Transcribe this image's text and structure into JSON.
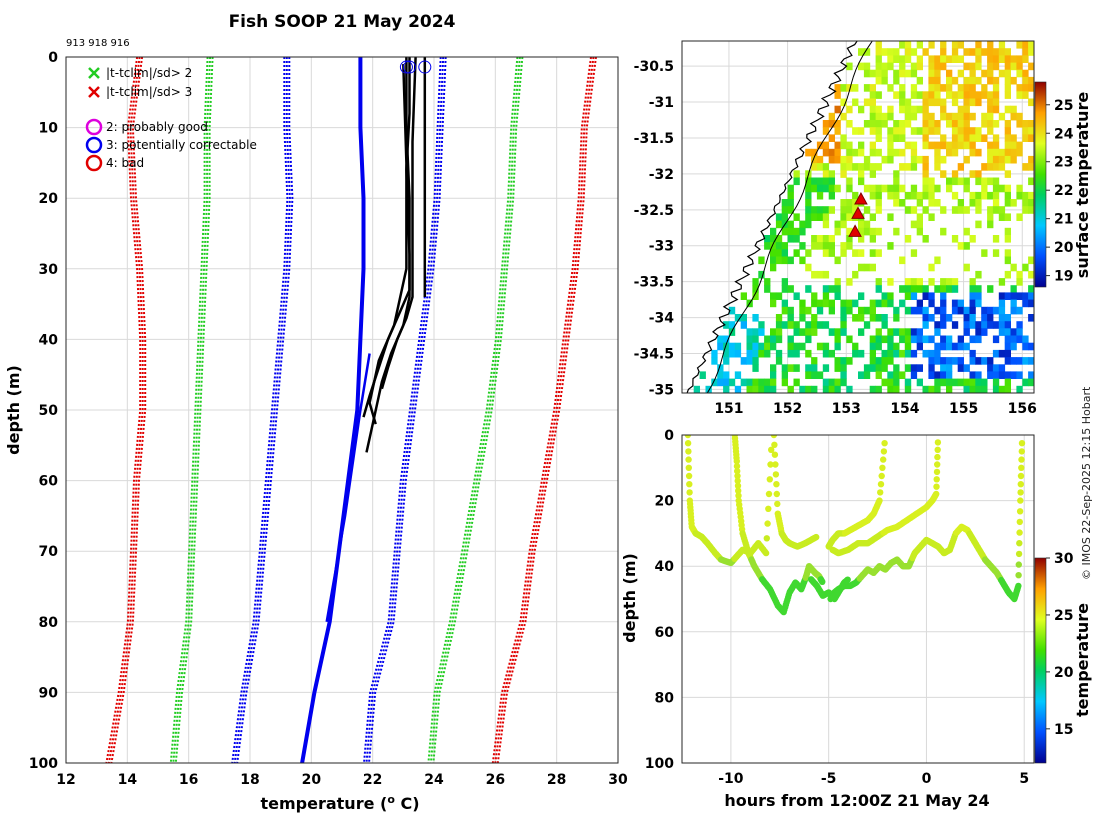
{
  "title": "Fish SOOP 21 May 2024",
  "ids": "913 918 916",
  "copyright": "© IMOS 22-Sep-2025 12:15 Hobart",
  "colors": {
    "red": "#e00000",
    "green": "#22cc22",
    "blue": "#0000ee",
    "black": "#000000",
    "magenta": "#dd00dd",
    "grid": "#d9d9d9"
  },
  "chart_data": [
    {
      "name": "profile",
      "type": "line",
      "xlabel": "temperature (",
      "xlabel_sup": "o",
      "xlabel_tail": " C)",
      "ylabel": "depth (m)",
      "xlim": [
        12,
        30
      ],
      "ylim": [
        0,
        100
      ],
      "xticks": [
        12,
        14,
        16,
        18,
        20,
        22,
        24,
        26,
        28,
        30
      ],
      "yticks": [
        0,
        10,
        20,
        30,
        40,
        50,
        60,
        70,
        80,
        90,
        100
      ],
      "legend": [
        {
          "marker": "x",
          "color": "#22cc22",
          "label": "|t-tclim|/sd> 2"
        },
        {
          "marker": "x",
          "color": "#e00000",
          "label": "|t-tclim|/sd> 3"
        },
        {
          "marker": "o",
          "color": "#dd00dd",
          "label": "2: probably good"
        },
        {
          "marker": "o",
          "color": "#0000ee",
          "label": "3: potentially correctable"
        },
        {
          "marker": "o",
          "color": "#e00000",
          "label": "4: bad"
        }
      ],
      "climatology": {
        "red_left": [
          [
            14.4,
            0
          ],
          [
            14.1,
            10
          ],
          [
            14.2,
            20
          ],
          [
            14.4,
            30
          ],
          [
            14.5,
            40
          ],
          [
            14.5,
            50
          ],
          [
            14.3,
            60
          ],
          [
            14.2,
            70
          ],
          [
            14.1,
            80
          ],
          [
            13.8,
            90
          ],
          [
            13.4,
            100
          ]
        ],
        "green_left": [
          [
            16.7,
            0
          ],
          [
            16.6,
            10
          ],
          [
            16.6,
            20
          ],
          [
            16.5,
            30
          ],
          [
            16.4,
            40
          ],
          [
            16.3,
            50
          ],
          [
            16.2,
            60
          ],
          [
            16.1,
            70
          ],
          [
            16.0,
            80
          ],
          [
            15.7,
            90
          ],
          [
            15.5,
            100
          ]
        ],
        "blue_left": [
          [
            19.2,
            0
          ],
          [
            19.2,
            10
          ],
          [
            19.3,
            20
          ],
          [
            19.2,
            30
          ],
          [
            19.0,
            40
          ],
          [
            18.8,
            50
          ],
          [
            18.6,
            60
          ],
          [
            18.4,
            70
          ],
          [
            18.2,
            80
          ],
          [
            17.8,
            90
          ],
          [
            17.5,
            100
          ]
        ],
        "blue_right": [
          [
            24.3,
            0
          ],
          [
            24.2,
            10
          ],
          [
            24.1,
            20
          ],
          [
            23.9,
            30
          ],
          [
            23.6,
            40
          ],
          [
            23.3,
            50
          ],
          [
            23.0,
            60
          ],
          [
            22.8,
            70
          ],
          [
            22.6,
            80
          ],
          [
            22.0,
            90
          ],
          [
            21.8,
            100
          ]
        ],
        "green_right": [
          [
            26.8,
            0
          ],
          [
            26.6,
            10
          ],
          [
            26.5,
            20
          ],
          [
            26.3,
            30
          ],
          [
            26.1,
            40
          ],
          [
            25.8,
            50
          ],
          [
            25.4,
            60
          ],
          [
            25.0,
            70
          ],
          [
            24.6,
            80
          ],
          [
            24.1,
            90
          ],
          [
            23.9,
            100
          ]
        ],
        "red_right": [
          [
            29.2,
            0
          ],
          [
            28.9,
            10
          ],
          [
            28.8,
            20
          ],
          [
            28.6,
            30
          ],
          [
            28.3,
            40
          ],
          [
            28.0,
            50
          ],
          [
            27.6,
            60
          ],
          [
            27.2,
            70
          ],
          [
            26.9,
            80
          ],
          [
            26.3,
            90
          ],
          [
            26.0,
            100
          ]
        ]
      },
      "mean_profile": [
        [
          21.6,
          0
        ],
        [
          21.6,
          10
        ],
        [
          21.7,
          20
        ],
        [
          21.7,
          30
        ],
        [
          21.6,
          40
        ],
        [
          21.5,
          50
        ],
        [
          21.2,
          60
        ],
        [
          20.9,
          70
        ],
        [
          20.6,
          80
        ],
        [
          20.1,
          90
        ],
        [
          19.7,
          100
        ]
      ],
      "mean_profile_short": [
        [
          21.9,
          42
        ],
        [
          21.6,
          50
        ],
        [
          21.1,
          65
        ],
        [
          20.5,
          80
        ]
      ],
      "profiles": [
        [
          [
            23.1,
            0
          ],
          [
            23.1,
            10
          ],
          [
            23.2,
            20
          ],
          [
            23.2,
            34
          ],
          [
            23.0,
            38
          ],
          [
            22.6,
            42
          ],
          [
            22.3,
            46
          ],
          [
            22.0,
            52
          ],
          [
            21.8,
            56
          ]
        ],
        [
          [
            23.2,
            0
          ],
          [
            23.2,
            8
          ],
          [
            23.1,
            16
          ],
          [
            23.2,
            28
          ],
          [
            23.2,
            33
          ],
          [
            22.9,
            36
          ],
          [
            22.5,
            40
          ],
          [
            22.2,
            44
          ],
          [
            21.9,
            48
          ],
          [
            21.7,
            51
          ]
        ],
        [
          [
            23.4,
            0
          ],
          [
            23.3,
            12
          ],
          [
            23.3,
            24
          ],
          [
            23.3,
            34
          ],
          [
            23.1,
            37
          ],
          [
            22.8,
            40
          ],
          [
            22.5,
            44
          ],
          [
            22.3,
            47
          ]
        ],
        [
          [
            23.7,
            0
          ],
          [
            23.7,
            10
          ],
          [
            23.7,
            20
          ],
          [
            23.7,
            34
          ]
        ],
        [
          [
            23.0,
            1
          ],
          [
            23.1,
            15
          ],
          [
            23.1,
            30
          ],
          [
            22.7,
            38
          ],
          [
            22.2,
            43
          ],
          [
            21.9,
            49
          ],
          [
            22.1,
            52
          ]
        ]
      ],
      "flag_circles": [
        [
          23.1,
          1
        ],
        [
          23.2,
          1
        ],
        [
          23.7,
          1
        ]
      ]
    },
    {
      "name": "sst_map",
      "type": "heatmap",
      "xlim": [
        150.2,
        156.2
      ],
      "ylim": [
        -35.05,
        -30.15
      ],
      "xticks": [
        151,
        152,
        153,
        154,
        155,
        156
      ],
      "yticks": [
        -30.5,
        -31,
        -31.5,
        -32,
        -32.5,
        -33,
        -33.5,
        -34,
        -34.5,
        -35
      ],
      "colorbar_label": "surface temperature",
      "colorbar_range": [
        18.6,
        25.8
      ],
      "colorbar_ticks": [
        19,
        20,
        21,
        22,
        23,
        24,
        25
      ],
      "markers": [
        [
          153.25,
          -32.35
        ],
        [
          153.2,
          -32.55
        ],
        [
          153.15,
          -32.8
        ]
      ]
    },
    {
      "name": "time_depth",
      "type": "scatter",
      "xlabel": "hours from 12:00Z 21 May 24",
      "ylabel": "depth (m)",
      "xlim": [
        -12.5,
        5.5
      ],
      "ylim": [
        0,
        100
      ],
      "xticks": [
        -10,
        -5,
        0,
        5
      ],
      "yticks": [
        0,
        20,
        40,
        60,
        80,
        100
      ],
      "colorbar_label": "temperature",
      "colorbar_range": [
        12,
        30
      ],
      "colorbar_ticks": [
        15,
        20,
        25,
        30
      ],
      "tracks": [
        {
          "t": [
            -12.2,
            -12.1,
            -12.0,
            -11.8,
            -11.5,
            -11.2,
            -10.8,
            -10.5,
            -10.0,
            -9.7,
            -9.4,
            -9.0,
            -8.6,
            -8.2,
            -7.9
          ],
          "d": [
            0,
            20,
            28,
            30,
            31,
            33,
            36,
            38,
            39,
            37,
            35,
            36,
            33,
            36,
            0
          ]
        },
        {
          "t": [
            -9.8,
            -9.7,
            -9.6,
            -9.4,
            -9.1,
            -8.8,
            -8.4,
            -8.0,
            -7.6,
            -7.3,
            -7.0,
            -6.7,
            -6.4,
            -6.2,
            -6.0,
            -5.7,
            -5.5,
            -5.3
          ],
          "d": [
            0,
            8,
            20,
            30,
            36,
            40,
            44,
            47,
            52,
            54,
            48,
            45,
            47,
            44,
            40,
            42,
            43,
            45
          ]
        },
        {
          "t": [
            -7.8,
            -7.6,
            -7.4,
            -7.2,
            -7.0,
            -6.6,
            -6.2,
            -5.9,
            -5.6
          ],
          "d": [
            0,
            24,
            30,
            32,
            33,
            34,
            33,
            32,
            31
          ]
        },
        {
          "t": [
            -5.0,
            -4.8,
            -4.5,
            -4.2,
            -3.9,
            -3.6,
            -3.3,
            -3.0,
            -2.7,
            -2.4,
            -2.1
          ],
          "d": [
            34,
            32,
            30,
            30,
            29,
            28,
            27,
            26,
            24,
            20,
            0
          ]
        },
        {
          "t": [
            -4.9,
            -4.7,
            -4.5,
            -4.2,
            -3.9,
            -3.6,
            -3.3,
            -3.0,
            -2.7,
            -2.4,
            -2.1,
            -1.8,
            -1.5,
            -1.2,
            -0.9
          ],
          "d": [
            50,
            48,
            47,
            46,
            46,
            45,
            43,
            41,
            42,
            40,
            41,
            39,
            38,
            40,
            40
          ]
        },
        {
          "t": [
            -4.8,
            -4.5,
            -4.0,
            -3.5,
            -3.0,
            -2.5,
            -2.0,
            -1.5,
            -1.0,
            -0.5,
            0.0,
            0.3,
            0.5,
            0.6
          ],
          "d": [
            35,
            36,
            35,
            33,
            33,
            31,
            29,
            28,
            26,
            24,
            22,
            20,
            18,
            0
          ]
        },
        {
          "t": [
            -5.9,
            -5.6,
            -5.3,
            -5.0,
            -4.7,
            -4.4,
            -4.2,
            -4.0
          ],
          "d": [
            44,
            46,
            49,
            48,
            50,
            47,
            45,
            44
          ]
        },
        {
          "t": [
            -0.9,
            -0.6,
            -0.3,
            0.0,
            0.3,
            0.6,
            0.9,
            1.2,
            1.5,
            1.8,
            2.1,
            2.4,
            2.7,
            3.0,
            3.3,
            3.6,
            3.9,
            4.2,
            4.5,
            4.7,
            4.8,
            4.9
          ],
          "d": [
            40,
            36,
            34,
            32,
            33,
            34,
            36,
            35,
            30,
            28,
            29,
            32,
            35,
            38,
            40,
            42,
            45,
            48,
            50,
            46,
            20,
            0
          ]
        }
      ]
    }
  ]
}
